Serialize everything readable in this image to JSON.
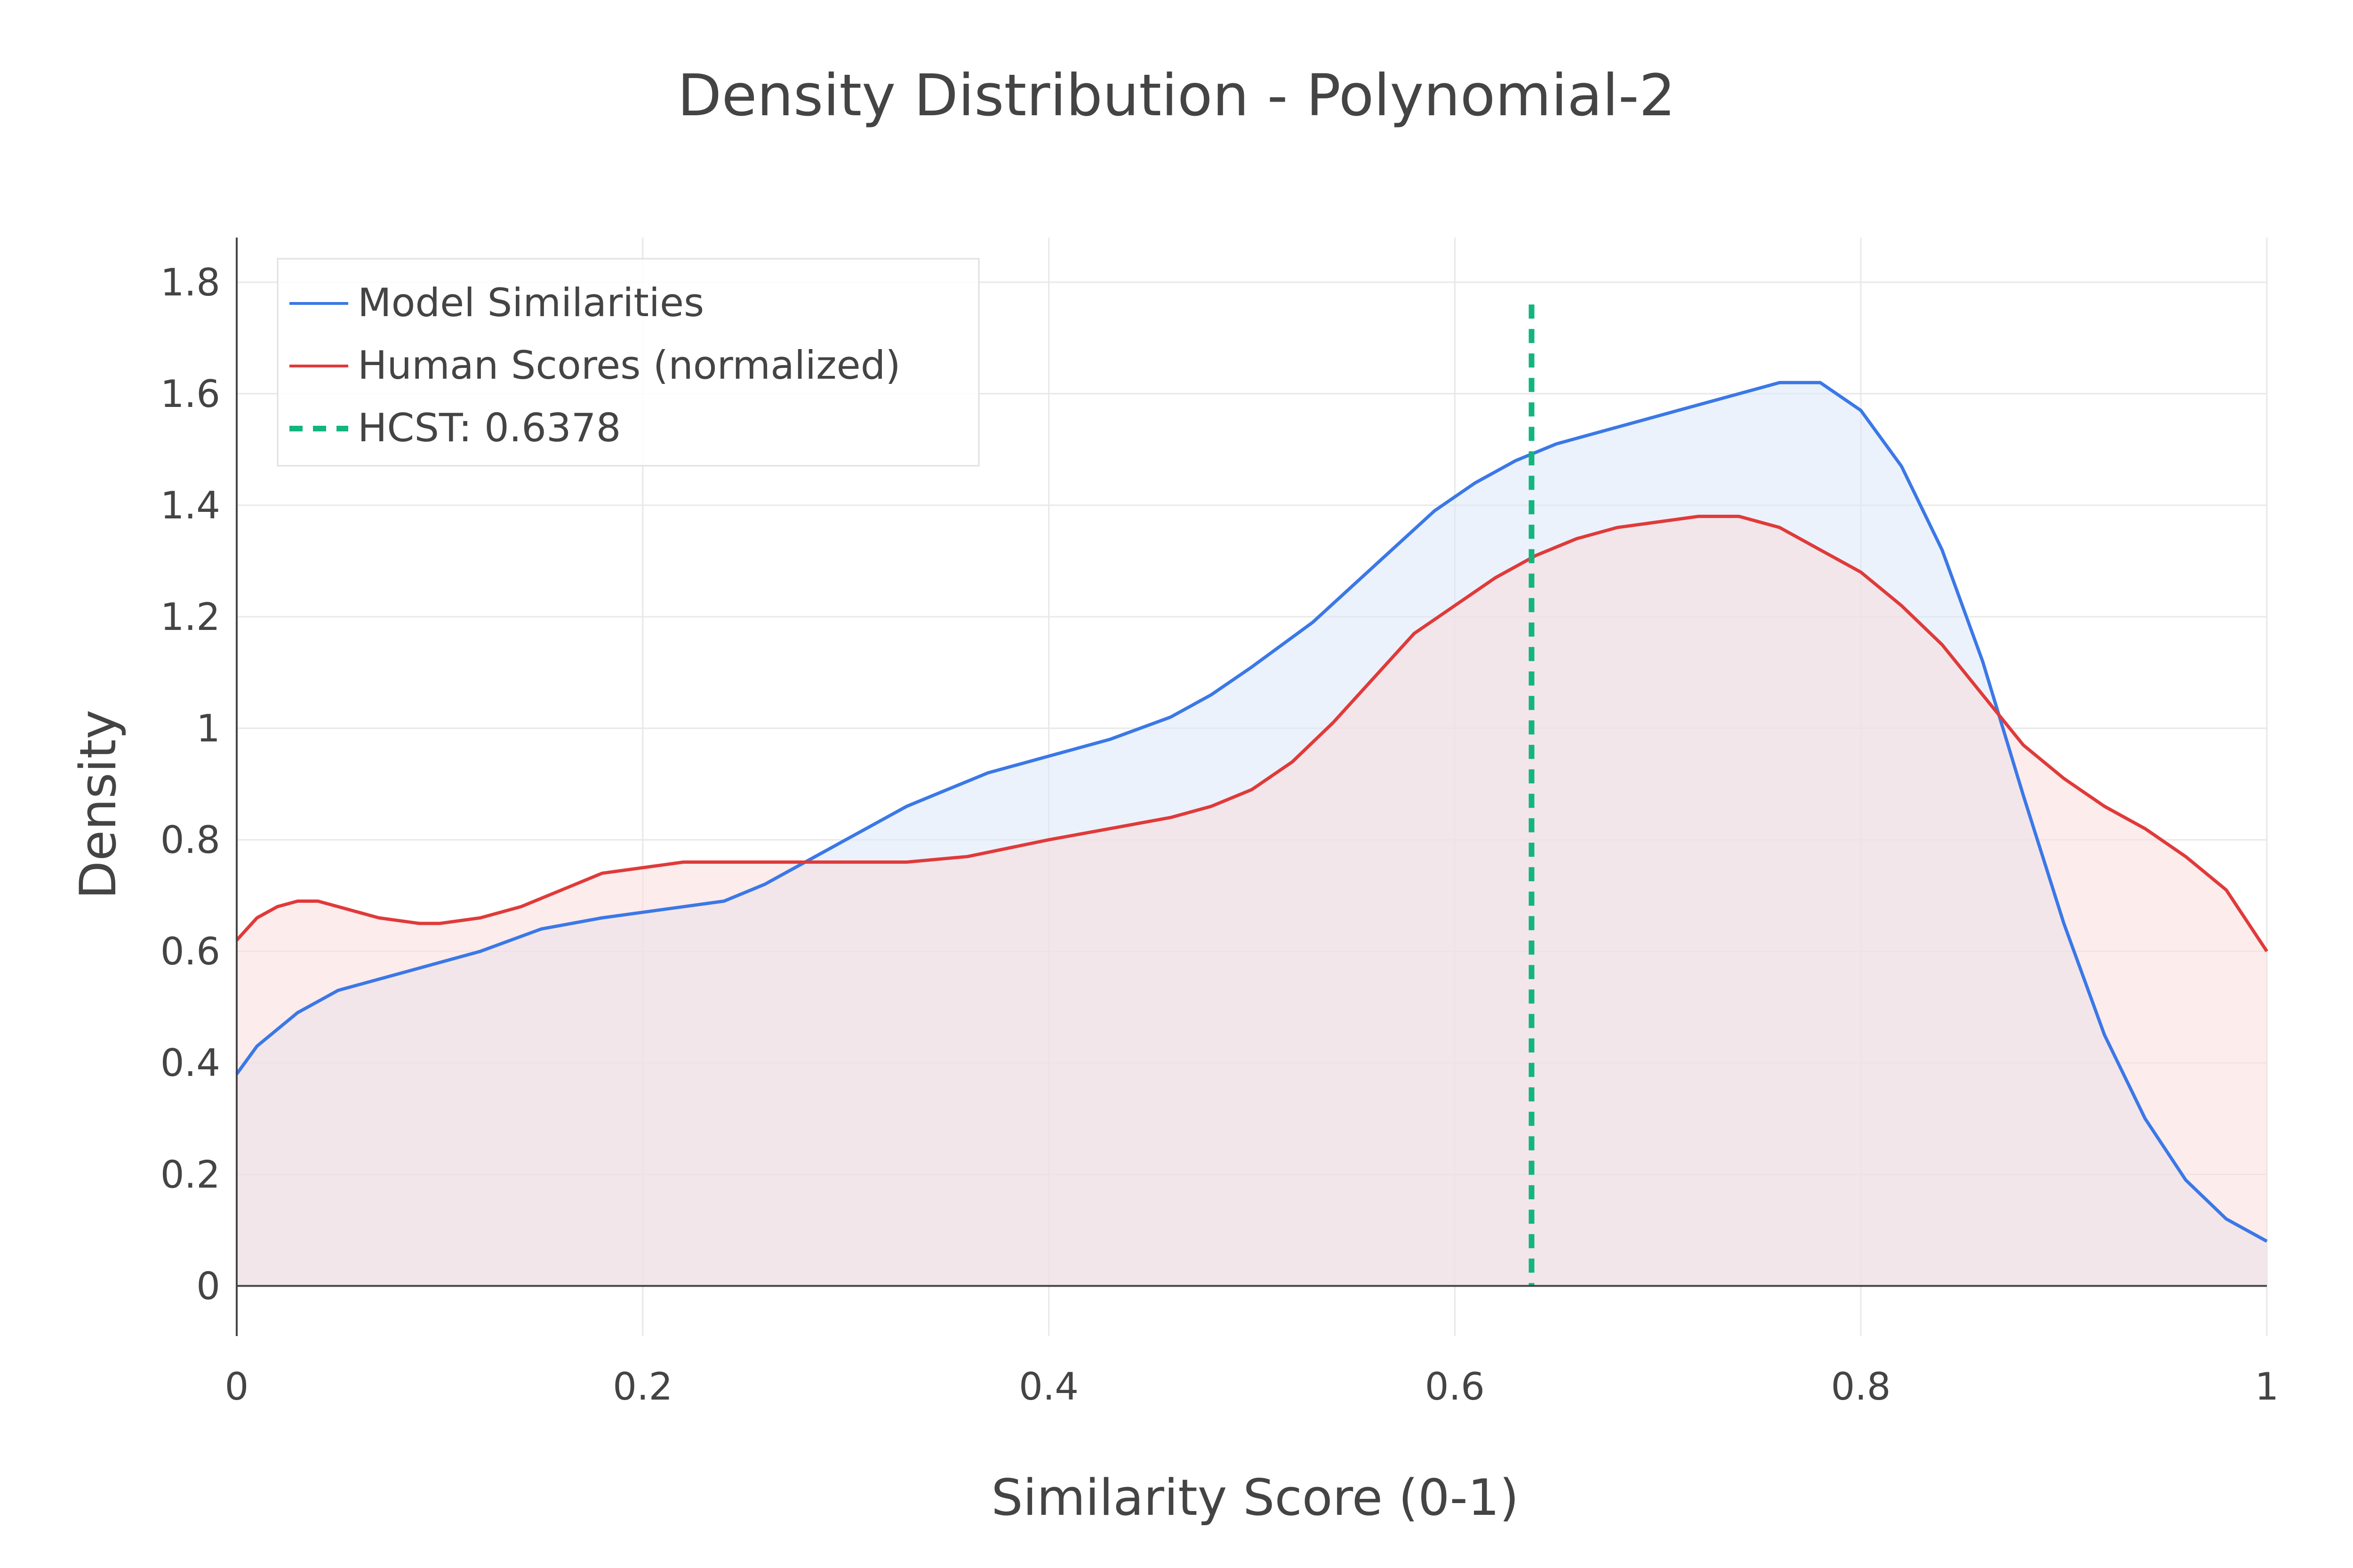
{
  "chart_data": {
    "type": "area",
    "title": "Density Distribution - Polynomial-2",
    "xlabel": "Similarity Score (0-1)",
    "ylabel": "Density",
    "xlim": [
      0,
      1
    ],
    "ylim": [
      -0.09,
      1.88
    ],
    "grid": true,
    "legend_position": "top-left",
    "x_ticks": [
      0,
      0.2,
      0.4,
      0.6,
      0.8,
      1
    ],
    "x_tick_labels": [
      "0",
      "0.2",
      "0.4",
      "0.6",
      "0.8",
      "1"
    ],
    "y_ticks": [
      0,
      0.2,
      0.4,
      0.6,
      0.8,
      1,
      1.2,
      1.4,
      1.6,
      1.8
    ],
    "y_tick_labels": [
      "0",
      "0.2",
      "0.4",
      "0.6",
      "0.8",
      "1",
      "1.2",
      "1.4",
      "1.6",
      "1.8"
    ],
    "series": [
      {
        "name": "Model Similarities",
        "color": "#3b78e7",
        "fill": "#dde8f8",
        "x": [
          0,
          0.01,
          0.02,
          0.03,
          0.04,
          0.05,
          0.06,
          0.08,
          0.1,
          0.12,
          0.15,
          0.18,
          0.2,
          0.22,
          0.24,
          0.26,
          0.28,
          0.3,
          0.33,
          0.35,
          0.37,
          0.4,
          0.43,
          0.46,
          0.48,
          0.5,
          0.53,
          0.56,
          0.59,
          0.61,
          0.63,
          0.65,
          0.68,
          0.71,
          0.74,
          0.76,
          0.78,
          0.8,
          0.82,
          0.84,
          0.86,
          0.88,
          0.9,
          0.92,
          0.94,
          0.96,
          0.98,
          1
        ],
        "y": [
          0.38,
          0.43,
          0.46,
          0.49,
          0.51,
          0.53,
          0.54,
          0.56,
          0.58,
          0.6,
          0.64,
          0.66,
          0.67,
          0.68,
          0.69,
          0.72,
          0.76,
          0.8,
          0.86,
          0.89,
          0.92,
          0.95,
          0.98,
          1.02,
          1.06,
          1.11,
          1.19,
          1.29,
          1.39,
          1.44,
          1.48,
          1.51,
          1.54,
          1.57,
          1.6,
          1.62,
          1.62,
          1.57,
          1.47,
          1.32,
          1.12,
          0.88,
          0.65,
          0.45,
          0.3,
          0.19,
          0.12,
          0.08
        ]
      },
      {
        "name": "Human Scores (normalized)",
        "color": "#e03a3a",
        "fill": "#fadcdc",
        "x": [
          0,
          0.01,
          0.02,
          0.03,
          0.04,
          0.05,
          0.07,
          0.09,
          0.1,
          0.12,
          0.14,
          0.16,
          0.18,
          0.2,
          0.22,
          0.24,
          0.26,
          0.28,
          0.3,
          0.33,
          0.36,
          0.4,
          0.43,
          0.46,
          0.48,
          0.5,
          0.52,
          0.54,
          0.56,
          0.58,
          0.6,
          0.62,
          0.64,
          0.66,
          0.68,
          0.7,
          0.72,
          0.74,
          0.76,
          0.78,
          0.8,
          0.82,
          0.84,
          0.86,
          0.88,
          0.9,
          0.92,
          0.94,
          0.96,
          0.98,
          1
        ],
        "y": [
          0.62,
          0.66,
          0.68,
          0.69,
          0.69,
          0.68,
          0.66,
          0.65,
          0.65,
          0.66,
          0.68,
          0.71,
          0.74,
          0.75,
          0.76,
          0.76,
          0.76,
          0.76,
          0.76,
          0.76,
          0.77,
          0.8,
          0.82,
          0.84,
          0.86,
          0.89,
          0.94,
          1.01,
          1.09,
          1.17,
          1.22,
          1.27,
          1.31,
          1.34,
          1.36,
          1.37,
          1.38,
          1.38,
          1.36,
          1.32,
          1.28,
          1.22,
          1.15,
          1.06,
          0.97,
          0.91,
          0.86,
          0.82,
          0.77,
          0.71,
          0.6
        ]
      }
    ],
    "threshold": {
      "name": "HCST: 0.6378",
      "x": 0.6378,
      "y_top": 1.76,
      "color": "#13b57e",
      "style": "dashed"
    }
  }
}
